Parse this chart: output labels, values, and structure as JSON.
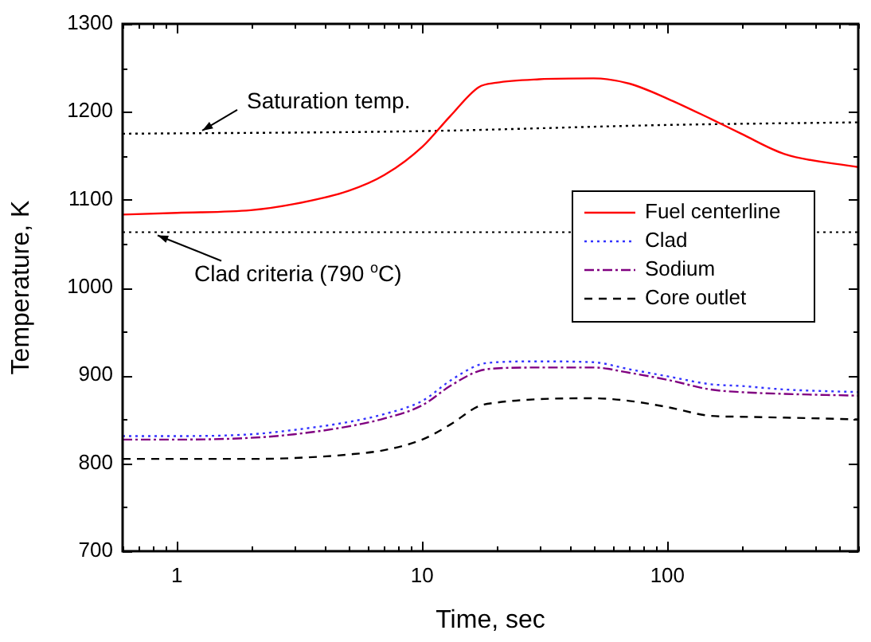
{
  "chart_data": {
    "type": "line",
    "xlabel": "Time, sec",
    "ylabel": "Temperature, K",
    "log": "x",
    "x": [
      0.6,
      1,
      2,
      3,
      5,
      7,
      10,
      13,
      17,
      20,
      30,
      50,
      70,
      100,
      150,
      200,
      300,
      600
    ],
    "series": [
      {
        "name": "Fuel centerline",
        "color": "#ff0000",
        "line_style": "solid",
        "values": [
          1083,
          1085,
          1088,
          1095,
          1110,
          1128,
          1160,
          1195,
          1228,
          1233,
          1237,
          1238,
          1232,
          1215,
          1192,
          1175,
          1152,
          1137
        ]
      },
      {
        "name": "Clad",
        "color": "#3333ff",
        "line_style": "dotted",
        "values": [
          831,
          831,
          833,
          838,
          847,
          856,
          871,
          894,
          912,
          915,
          916,
          915,
          907,
          899,
          890,
          888,
          884,
          881
        ]
      },
      {
        "name": "Sodium",
        "color": "#800080",
        "line_style": "dashdot",
        "values": [
          827,
          827,
          829,
          833,
          842,
          851,
          866,
          888,
          905,
          908,
          909,
          909,
          903,
          895,
          884,
          881,
          879,
          877
        ]
      },
      {
        "name": "Core outlet",
        "color": "#000000",
        "line_style": "dashed",
        "values": [
          805,
          805,
          805,
          806,
          810,
          815,
          827,
          844,
          865,
          869,
          873,
          874,
          871,
          864,
          854,
          853,
          852,
          850
        ]
      },
      {
        "color": "#000000",
        "line_style": "dotted",
        "x": [
          0.6,
          10,
          100,
          600
        ],
        "values": [
          1175,
          1178,
          1185,
          1188
        ]
      }
    ],
    "ref_lines": [
      {
        "axis": "y",
        "value": 1063,
        "label": "Clad criteria (790 $^{o}$C)",
        "color": "#000000",
        "line_style": "dotted"
      }
    ],
    "annotations": [
      {
        "text": "Saturation temp.",
        "x": 1.23,
        "y": 1175
      }
    ],
    "xlim": [
      0.6,
      600
    ],
    "ylim": [
      700,
      1300
    ],
    "xticks": [
      {
        "value": 0.6,
        "label": null
      },
      {
        "value": 0.7,
        "label": null
      },
      {
        "value": 0.8,
        "label": null
      },
      {
        "value": 0.9,
        "label": null
      },
      1,
      {
        "value": 2,
        "label": null
      },
      {
        "value": 3,
        "label": null
      },
      {
        "value": 4,
        "label": null
      },
      {
        "value": 5,
        "label": null
      },
      {
        "value": 6,
        "label": null
      },
      {
        "value": 7,
        "label": null
      },
      {
        "value": 8,
        "label": null
      },
      {
        "value": 9,
        "label": null
      },
      10,
      {
        "value": 20,
        "label": null
      },
      {
        "value": 30,
        "label": null
      },
      {
        "value": 40,
        "label": null
      },
      {
        "value": 50,
        "label": null
      },
      {
        "value": 60,
        "label": null
      },
      {
        "value": 70,
        "label": null
      },
      {
        "value": 80,
        "label": null
      },
      {
        "value": 90,
        "label": null
      },
      100,
      {
        "value": 200,
        "label": null
      },
      {
        "value": 300,
        "label": null
      },
      {
        "value": 400,
        "label": null
      },
      {
        "value": 500,
        "label": null
      },
      {
        "value": 600,
        "label": null
      }
    ],
    "yticks": [
      700,
      {
        "value": 750,
        "label": null
      },
      800,
      {
        "value": 850,
        "label": null
      },
      900,
      {
        "value": 950,
        "label": null
      },
      1000,
      {
        "value": 1050,
        "label": null
      },
      1100,
      {
        "value": 1150,
        "label": null
      },
      1200,
      {
        "value": 1250,
        "label": null
      },
      1300
    ],
    "grid": false,
    "legend": "right",
    "marker": "none"
  }
}
